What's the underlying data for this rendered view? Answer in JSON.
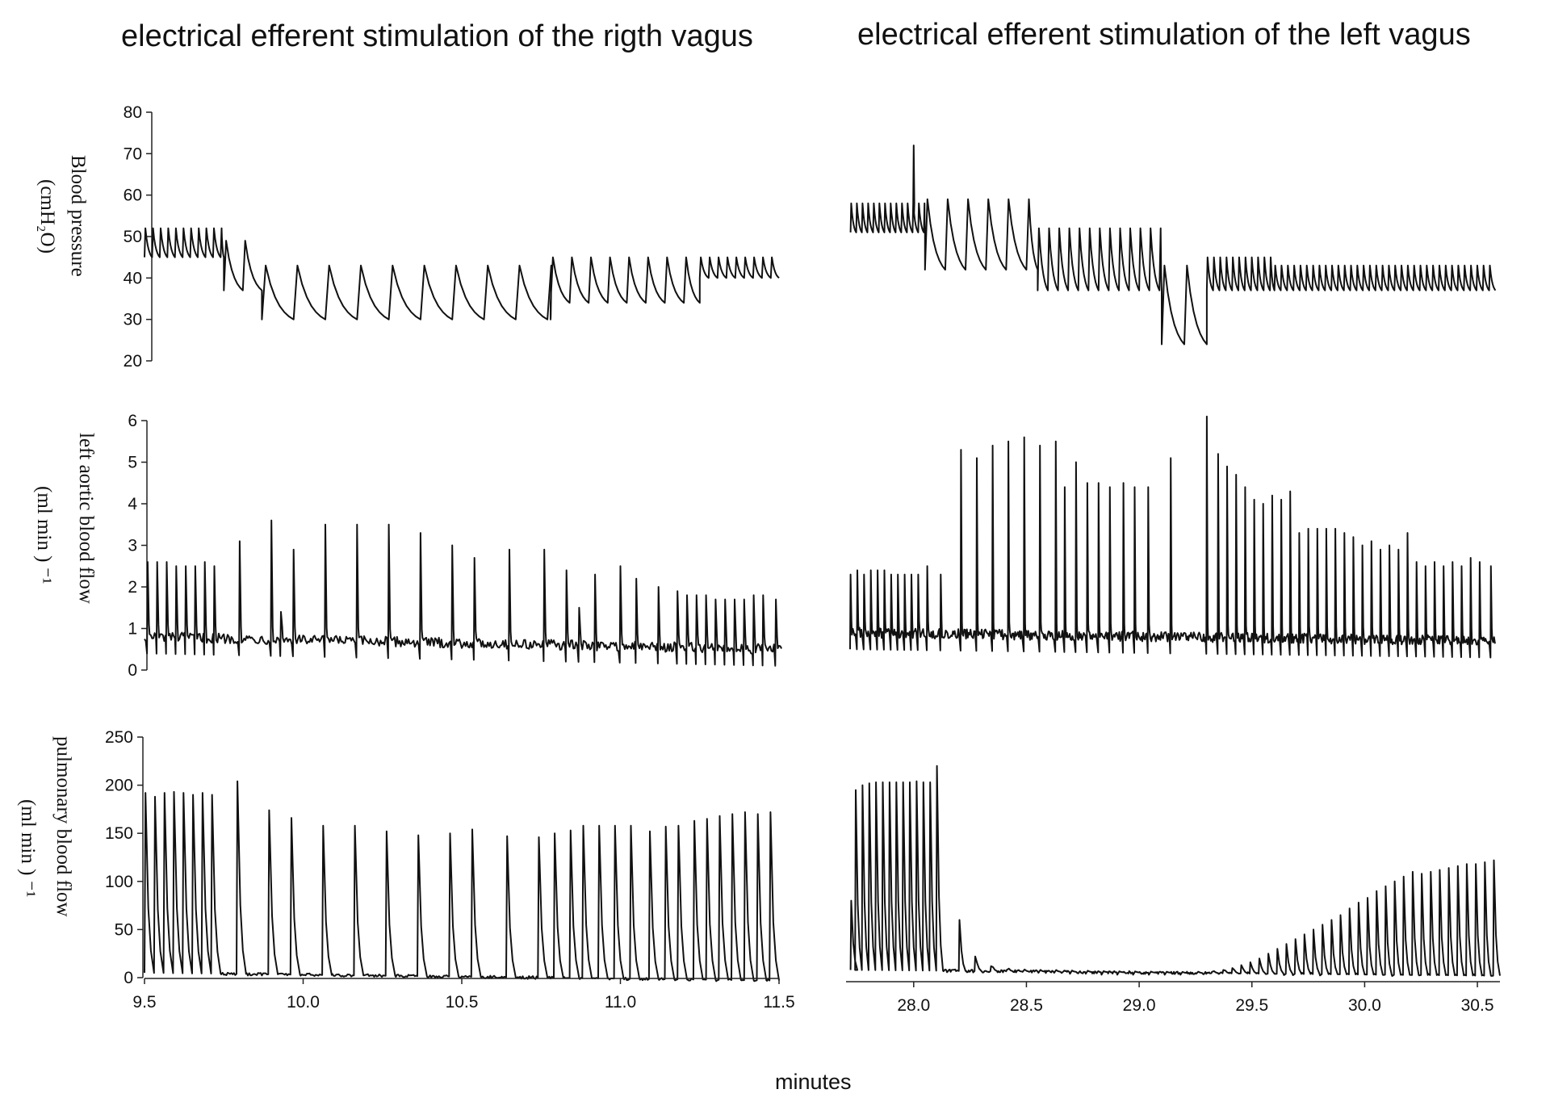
{
  "figure": {
    "title_left": "electrical efferent stimulation of the rigth vagus",
    "title_right": "electrical efferent stimulation of the left vagus",
    "xlabel": "minutes"
  },
  "chart_data": [
    {
      "type": "line",
      "name": "blood-pressure",
      "ylabel_line1": "Blood pressure",
      "ylabel_line2": "(cmH₂O)",
      "ylim": [
        20,
        80
      ],
      "yticks": [
        20,
        30,
        40,
        50,
        60,
        70,
        80
      ],
      "left": {
        "xlim": [
          9.5,
          11.5
        ],
        "waveform": "pressure",
        "phases": [
          {
            "x0": 9.5,
            "x1": 9.75,
            "period": 0.024,
            "hi": 52,
            "lo": 45
          },
          {
            "x0": 9.75,
            "x1": 9.87,
            "period": 0.06,
            "hi": 49,
            "lo": 37
          },
          {
            "x0": 9.87,
            "x1": 10.78,
            "period": 0.1,
            "hi": 43,
            "lo": 30
          },
          {
            "x0": 10.78,
            "x1": 11.25,
            "period": 0.06,
            "hi": 45,
            "lo": 34
          },
          {
            "x0": 11.25,
            "x1": 11.5,
            "period": 0.028,
            "hi": 45,
            "lo": 40
          }
        ]
      },
      "right": {
        "xlim": [
          27.7,
          30.6
        ],
        "waveform": "pressure",
        "phases": [
          {
            "x0": 27.72,
            "x1": 28.05,
            "period": 0.025,
            "hi": 58,
            "lo": 51
          },
          {
            "x0": 28.05,
            "x1": 28.55,
            "period": 0.09,
            "hi": 59,
            "lo": 42
          },
          {
            "x0": 28.55,
            "x1": 29.1,
            "period": 0.045,
            "hi": 52,
            "lo": 37
          },
          {
            "x0": 29.1,
            "x1": 29.3,
            "period": 0.1,
            "hi": 43,
            "lo": 24
          },
          {
            "x0": 29.3,
            "x1": 29.6,
            "period": 0.028,
            "hi": 45,
            "lo": 37
          },
          {
            "x0": 29.6,
            "x1": 30.58,
            "period": 0.028,
            "hi": 43,
            "lo": 37
          }
        ],
        "spike": {
          "x": 28.0,
          "y": 72
        }
      }
    },
    {
      "type": "line",
      "name": "left-aortic-blood-flow",
      "ylabel_line1": "left aortic blood flow",
      "ylabel_line2": "(ml min ) ⁻¹",
      "ylim": [
        0,
        6
      ],
      "yticks": [
        0,
        1,
        2,
        3,
        4,
        5,
        6
      ],
      "left": {
        "xlim": [
          9.5,
          11.5
        ],
        "waveform": "flow",
        "baseline_start": 0.8,
        "baseline_end": 0.5,
        "beats": [
          {
            "x": 9.51,
            "y": 2.6
          },
          {
            "x": 9.54,
            "y": 2.6
          },
          {
            "x": 9.57,
            "y": 2.6
          },
          {
            "x": 9.6,
            "y": 2.5
          },
          {
            "x": 9.63,
            "y": 2.5
          },
          {
            "x": 9.66,
            "y": 2.5
          },
          {
            "x": 9.69,
            "y": 2.6
          },
          {
            "x": 9.72,
            "y": 2.5
          },
          {
            "x": 9.8,
            "y": 3.1
          },
          {
            "x": 9.9,
            "y": 3.6
          },
          {
            "x": 9.93,
            "y": 1.4
          },
          {
            "x": 9.97,
            "y": 2.9
          },
          {
            "x": 10.07,
            "y": 3.5
          },
          {
            "x": 10.17,
            "y": 3.5
          },
          {
            "x": 10.27,
            "y": 3.5
          },
          {
            "x": 10.37,
            "y": 3.3
          },
          {
            "x": 10.47,
            "y": 3.0
          },
          {
            "x": 10.54,
            "y": 2.7
          },
          {
            "x": 10.65,
            "y": 2.9
          },
          {
            "x": 10.76,
            "y": 2.9
          },
          {
            "x": 10.83,
            "y": 2.4
          },
          {
            "x": 10.87,
            "y": 1.5
          },
          {
            "x": 10.92,
            "y": 2.3
          },
          {
            "x": 11.0,
            "y": 2.5
          },
          {
            "x": 11.05,
            "y": 2.2
          },
          {
            "x": 11.12,
            "y": 2.0
          },
          {
            "x": 11.18,
            "y": 1.9
          },
          {
            "x": 11.21,
            "y": 1.8
          },
          {
            "x": 11.24,
            "y": 1.8
          },
          {
            "x": 11.27,
            "y": 1.8
          },
          {
            "x": 11.3,
            "y": 1.7
          },
          {
            "x": 11.33,
            "y": 1.7
          },
          {
            "x": 11.36,
            "y": 1.7
          },
          {
            "x": 11.39,
            "y": 1.7
          },
          {
            "x": 11.42,
            "y": 1.8
          },
          {
            "x": 11.45,
            "y": 1.8
          },
          {
            "x": 11.49,
            "y": 1.7
          }
        ]
      },
      "right": {
        "xlim": [
          27.7,
          30.6
        ],
        "waveform": "flow",
        "baseline_start": 0.9,
        "baseline_end": 0.7,
        "beats": [
          {
            "x": 27.72,
            "y": 2.3
          },
          {
            "x": 27.75,
            "y": 2.4
          },
          {
            "x": 27.78,
            "y": 2.3
          },
          {
            "x": 27.81,
            "y": 2.4
          },
          {
            "x": 27.84,
            "y": 2.4
          },
          {
            "x": 27.87,
            "y": 2.4
          },
          {
            "x": 27.9,
            "y": 2.3
          },
          {
            "x": 27.93,
            "y": 2.3
          },
          {
            "x": 27.96,
            "y": 2.3
          },
          {
            "x": 27.99,
            "y": 2.3
          },
          {
            "x": 28.02,
            "y": 2.3
          },
          {
            "x": 28.06,
            "y": 2.5
          },
          {
            "x": 28.12,
            "y": 2.3
          },
          {
            "x": 28.21,
            "y": 5.3
          },
          {
            "x": 28.28,
            "y": 5.1
          },
          {
            "x": 28.35,
            "y": 5.4
          },
          {
            "x": 28.42,
            "y": 5.5
          },
          {
            "x": 28.49,
            "y": 5.6
          },
          {
            "x": 28.56,
            "y": 5.4
          },
          {
            "x": 28.63,
            "y": 5.5
          },
          {
            "x": 28.67,
            "y": 4.4
          },
          {
            "x": 28.72,
            "y": 5.0
          },
          {
            "x": 28.77,
            "y": 4.5
          },
          {
            "x": 28.82,
            "y": 4.5
          },
          {
            "x": 28.87,
            "y": 4.4
          },
          {
            "x": 28.93,
            "y": 4.5
          },
          {
            "x": 28.98,
            "y": 4.4
          },
          {
            "x": 29.04,
            "y": 4.4
          },
          {
            "x": 29.14,
            "y": 5.1
          },
          {
            "x": 29.3,
            "y": 6.1
          },
          {
            "x": 29.35,
            "y": 5.2
          },
          {
            "x": 29.39,
            "y": 4.9
          },
          {
            "x": 29.43,
            "y": 4.7
          },
          {
            "x": 29.47,
            "y": 4.4
          },
          {
            "x": 29.51,
            "y": 4.1
          },
          {
            "x": 29.55,
            "y": 4.0
          },
          {
            "x": 29.59,
            "y": 4.2
          },
          {
            "x": 29.63,
            "y": 4.1
          },
          {
            "x": 29.67,
            "y": 4.3
          },
          {
            "x": 29.71,
            "y": 3.3
          },
          {
            "x": 29.75,
            "y": 3.4
          },
          {
            "x": 29.79,
            "y": 3.4
          },
          {
            "x": 29.83,
            "y": 3.4
          },
          {
            "x": 29.87,
            "y": 3.4
          },
          {
            "x": 29.91,
            "y": 3.3
          },
          {
            "x": 29.95,
            "y": 3.2
          },
          {
            "x": 29.99,
            "y": 3.0
          },
          {
            "x": 30.03,
            "y": 3.1
          },
          {
            "x": 30.07,
            "y": 2.9
          },
          {
            "x": 30.11,
            "y": 3.0
          },
          {
            "x": 30.15,
            "y": 2.9
          },
          {
            "x": 30.19,
            "y": 3.3
          },
          {
            "x": 30.23,
            "y": 2.6
          },
          {
            "x": 30.27,
            "y": 2.5
          },
          {
            "x": 30.31,
            "y": 2.6
          },
          {
            "x": 30.35,
            "y": 2.5
          },
          {
            "x": 30.39,
            "y": 2.6
          },
          {
            "x": 30.43,
            "y": 2.5
          },
          {
            "x": 30.47,
            "y": 2.7
          },
          {
            "x": 30.51,
            "y": 2.6
          },
          {
            "x": 30.56,
            "y": 2.5
          }
        ]
      }
    },
    {
      "type": "line",
      "name": "pulmonary-blood-flow",
      "ylabel_line1": "pulmonary blood flow",
      "ylabel_line2": "(ml min ) ⁻¹",
      "ylim": [
        0,
        250
      ],
      "yticks": [
        0,
        50,
        100,
        150,
        200,
        250
      ],
      "left": {
        "xlim": [
          9.5,
          11.5
        ],
        "xticks": [
          9.5,
          10.0,
          10.5,
          11.0,
          11.5
        ],
        "xticklabels": [
          "9.5",
          "10.0",
          "10.5",
          "11.0",
          "11.5"
        ],
        "waveform": "pulse",
        "baseline_start": 5,
        "baseline_end": -3,
        "beats": [
          {
            "x": 9.5,
            "y": 192
          },
          {
            "x": 9.53,
            "y": 188
          },
          {
            "x": 9.56,
            "y": 192
          },
          {
            "x": 9.59,
            "y": 193
          },
          {
            "x": 9.62,
            "y": 192
          },
          {
            "x": 9.65,
            "y": 190
          },
          {
            "x": 9.68,
            "y": 192
          },
          {
            "x": 9.71,
            "y": 190
          },
          {
            "x": 9.79,
            "y": 204
          },
          {
            "x": 9.89,
            "y": 174
          },
          {
            "x": 9.96,
            "y": 166
          },
          {
            "x": 10.06,
            "y": 158
          },
          {
            "x": 10.16,
            "y": 158
          },
          {
            "x": 10.26,
            "y": 152
          },
          {
            "x": 10.36,
            "y": 148
          },
          {
            "x": 10.46,
            "y": 150
          },
          {
            "x": 10.53,
            "y": 154
          },
          {
            "x": 10.64,
            "y": 147
          },
          {
            "x": 10.74,
            "y": 146
          },
          {
            "x": 10.79,
            "y": 150
          },
          {
            "x": 10.84,
            "y": 153
          },
          {
            "x": 10.88,
            "y": 158
          },
          {
            "x": 10.93,
            "y": 158
          },
          {
            "x": 10.98,
            "y": 158
          },
          {
            "x": 11.03,
            "y": 158
          },
          {
            "x": 11.09,
            "y": 152
          },
          {
            "x": 11.14,
            "y": 157
          },
          {
            "x": 11.18,
            "y": 158
          },
          {
            "x": 11.23,
            "y": 163
          },
          {
            "x": 11.27,
            "y": 165
          },
          {
            "x": 11.31,
            "y": 168
          },
          {
            "x": 11.35,
            "y": 170
          },
          {
            "x": 11.39,
            "y": 172
          },
          {
            "x": 11.43,
            "y": 170
          },
          {
            "x": 11.47,
            "y": 172
          }
        ]
      },
      "right": {
        "xlim": [
          27.7,
          30.6
        ],
        "xticks": [
          28.0,
          28.5,
          29.0,
          29.5,
          30.0,
          30.5
        ],
        "xticklabels": [
          "28.0",
          "28.5",
          "29.0",
          "29.5",
          "30.0",
          "30.5"
        ],
        "waveform": "pulse",
        "baseline_start": 8,
        "baseline_end": 2,
        "beats": [
          {
            "x": 27.72,
            "y": 80
          },
          {
            "x": 27.74,
            "y": 195
          },
          {
            "x": 27.77,
            "y": 200
          },
          {
            "x": 27.8,
            "y": 202
          },
          {
            "x": 27.83,
            "y": 203
          },
          {
            "x": 27.86,
            "y": 203
          },
          {
            "x": 27.89,
            "y": 203
          },
          {
            "x": 27.92,
            "y": 203
          },
          {
            "x": 27.95,
            "y": 203
          },
          {
            "x": 27.98,
            "y": 203
          },
          {
            "x": 28.01,
            "y": 204
          },
          {
            "x": 28.04,
            "y": 203
          },
          {
            "x": 28.07,
            "y": 203
          },
          {
            "x": 28.1,
            "y": 220
          },
          {
            "x": 28.2,
            "y": 60
          },
          {
            "x": 28.27,
            "y": 22
          },
          {
            "x": 28.34,
            "y": 12
          },
          {
            "x": 28.41,
            "y": 8
          },
          {
            "x": 28.48,
            "y": 6
          },
          {
            "x": 28.55,
            "y": 5
          },
          {
            "x": 28.62,
            "y": 5
          },
          {
            "x": 28.69,
            "y": 4
          },
          {
            "x": 28.76,
            "y": 4
          },
          {
            "x": 28.83,
            "y": 3
          },
          {
            "x": 28.9,
            "y": 3
          },
          {
            "x": 28.97,
            "y": 3
          },
          {
            "x": 29.04,
            "y": 3
          },
          {
            "x": 29.11,
            "y": 3
          },
          {
            "x": 29.18,
            "y": 3
          },
          {
            "x": 29.25,
            "y": 4
          },
          {
            "x": 29.32,
            "y": 6
          },
          {
            "x": 29.37,
            "y": 8
          },
          {
            "x": 29.41,
            "y": 10
          },
          {
            "x": 29.45,
            "y": 13
          },
          {
            "x": 29.49,
            "y": 16
          },
          {
            "x": 29.53,
            "y": 20
          },
          {
            "x": 29.57,
            "y": 25
          },
          {
            "x": 29.61,
            "y": 30
          },
          {
            "x": 29.65,
            "y": 35
          },
          {
            "x": 29.69,
            "y": 40
          },
          {
            "x": 29.73,
            "y": 45
          },
          {
            "x": 29.77,
            "y": 50
          },
          {
            "x": 29.81,
            "y": 55
          },
          {
            "x": 29.85,
            "y": 60
          },
          {
            "x": 29.89,
            "y": 65
          },
          {
            "x": 29.93,
            "y": 72
          },
          {
            "x": 29.97,
            "y": 78
          },
          {
            "x": 30.01,
            "y": 83
          },
          {
            "x": 30.05,
            "y": 90
          },
          {
            "x": 30.09,
            "y": 95
          },
          {
            "x": 30.13,
            "y": 100
          },
          {
            "x": 30.17,
            "y": 105
          },
          {
            "x": 30.21,
            "y": 110
          },
          {
            "x": 30.25,
            "y": 108
          },
          {
            "x": 30.29,
            "y": 110
          },
          {
            "x": 30.33,
            "y": 112
          },
          {
            "x": 30.37,
            "y": 114
          },
          {
            "x": 30.41,
            "y": 116
          },
          {
            "x": 30.45,
            "y": 118
          },
          {
            "x": 30.49,
            "y": 118
          },
          {
            "x": 30.53,
            "y": 120
          },
          {
            "x": 30.57,
            "y": 122
          }
        ]
      }
    }
  ]
}
